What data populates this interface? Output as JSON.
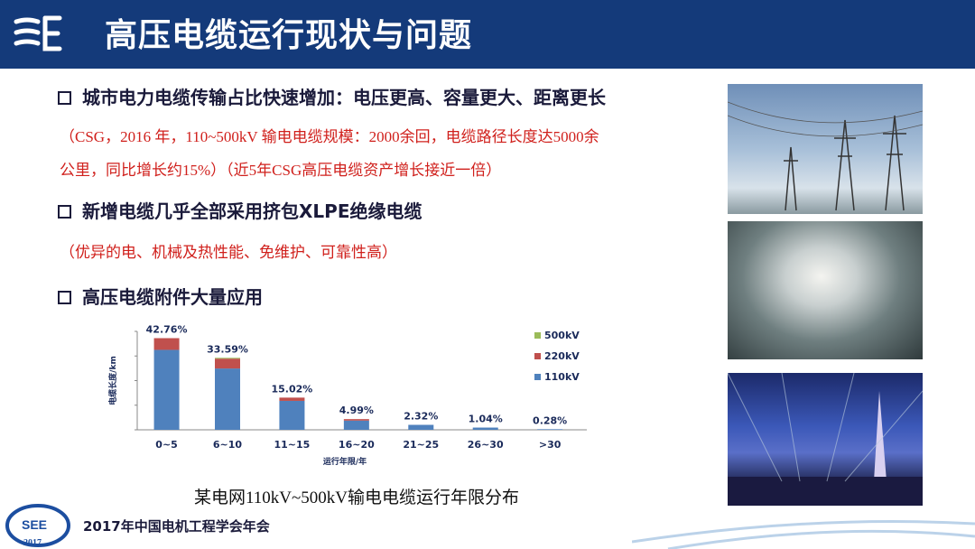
{
  "header": {
    "title": "高压电缆运行现状与问题"
  },
  "bullets": [
    {
      "text": "城市电力电缆传输占比快速增加：电压更高、容量更大、距离更长",
      "notes": [
        "（CSG，2016 年，110~500kV 输电电缆规模：2000余回，电缆路径长度达5000余",
        "公里，同比增长约15%）（近5年CSG高压电缆资产增长接近一倍）"
      ]
    },
    {
      "text": "新增电缆几乎全部采用挤包XLPE绝缘电缆",
      "notes": [
        "（优异的电、机械及热性能、免维护、可靠性高）"
      ]
    },
    {
      "text": "高压电缆附件大量应用",
      "notes": []
    }
  ],
  "chart_caption": "某电网110kV~500kV输电电缆运行年限分布",
  "footer": {
    "text": "2017年中国电机工程学会年会",
    "logo_text": "SEE 2017"
  },
  "photos": [
    "transmission-towers-photo",
    "cable-tunnel-photo",
    "city-night-tower-photo"
  ],
  "colors": {
    "header": "#143a7a",
    "note_red": "#d0201c",
    "s110": "#4f81bd",
    "s220": "#c0504d",
    "s500": "#9bbb59"
  },
  "chart_data": {
    "type": "bar",
    "stacked": true,
    "xlabel": "运行年限/年",
    "ylabel": "电缆长度/km",
    "categories": [
      "0~5",
      "6~10",
      "11~15",
      "16~20",
      "21~25",
      "26~30",
      ">30"
    ],
    "series": [
      {
        "name": "110kV",
        "color": "#4f81bd",
        "values": [
          37.3,
          28.6,
          13.5,
          4.3,
          2.32,
          1.04,
          0.28
        ]
      },
      {
        "name": "220kV",
        "color": "#c0504d",
        "values": [
          5.46,
          4.6,
          1.52,
          0.69,
          0,
          0,
          0
        ]
      },
      {
        "name": "500kV",
        "color": "#9bbb59",
        "values": [
          0,
          0.39,
          0,
          0,
          0,
          0,
          0
        ]
      }
    ],
    "data_labels": [
      "42.76%",
      "33.59%",
      "15.02%",
      "4.99%",
      "2.32%",
      "1.04%",
      "0.28%"
    ],
    "legend_order": [
      "500kV",
      "220kV",
      "110kV"
    ],
    "legend": "right",
    "grid": false,
    "ylim": [
      0,
      45
    ]
  }
}
